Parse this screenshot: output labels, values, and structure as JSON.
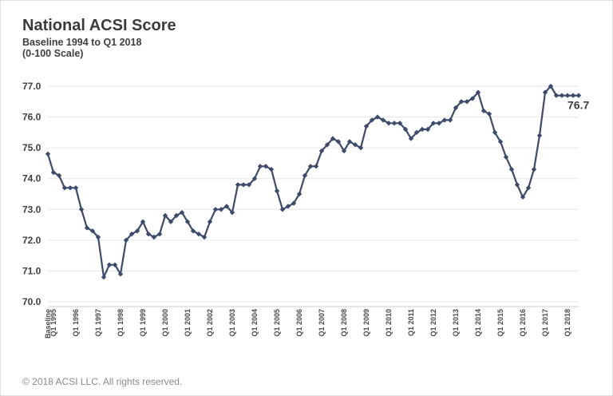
{
  "chart_data": {
    "type": "line",
    "title": "National ACSI Score",
    "subtitle": "Baseline 1994 to Q1 2018",
    "subtitle2": "(0-100 Scale)",
    "xlabel": "",
    "ylabel": "",
    "ylim": [
      70.0,
      77.0
    ],
    "y_ticks": [
      "70.0",
      "71.0",
      "72.0",
      "73.0",
      "74.0",
      "75.0",
      "76.0",
      "77.0"
    ],
    "x_tick_labels": [
      "Baseline",
      "Q1 1995",
      "Q1 1996",
      "Q1 1997",
      "Q1 1998",
      "Q1 1999",
      "Q1 2000",
      "Q1 2001",
      "Q1 2002",
      "Q1 2003",
      "Q1 2004",
      "Q1 2005",
      "Q1 2006",
      "Q1 2007",
      "Q1 2008",
      "Q1 2009",
      "Q1 2010",
      "Q1 2011",
      "Q1 2012",
      "Q1 2013",
      "Q1 2014",
      "Q1 2015",
      "Q1 2016",
      "Q1 2017",
      "Q1 2018"
    ],
    "grid": true,
    "line_color": "#3d4a6b",
    "grid_color": "#e6e6e6",
    "end_label": "76.7",
    "values": [
      74.8,
      74.2,
      74.1,
      73.7,
      73.7,
      73.7,
      73.0,
      72.4,
      72.3,
      72.1,
      70.8,
      71.2,
      71.2,
      70.9,
      72.0,
      72.2,
      72.3,
      72.6,
      72.2,
      72.1,
      72.2,
      72.8,
      72.6,
      72.8,
      72.9,
      72.6,
      72.3,
      72.2,
      72.1,
      72.6,
      73.0,
      73.0,
      73.1,
      72.9,
      73.8,
      73.8,
      73.8,
      74.0,
      74.4,
      74.4,
      74.3,
      73.6,
      73.0,
      73.1,
      73.2,
      73.5,
      74.1,
      74.4,
      74.4,
      74.9,
      75.1,
      75.3,
      75.2,
      74.9,
      75.2,
      75.1,
      75.0,
      75.7,
      75.9,
      76.0,
      75.9,
      75.8,
      75.8,
      75.8,
      75.6,
      75.3,
      75.5,
      75.6,
      75.6,
      75.8,
      75.8,
      75.9,
      75.9,
      76.3,
      76.5,
      76.5,
      76.6,
      76.8,
      76.2,
      76.1,
      75.5,
      75.2,
      74.7,
      74.3,
      73.8,
      73.4,
      73.7,
      74.3,
      75.4,
      76.8,
      77.0,
      76.7,
      76.7,
      76.7,
      76.7,
      76.7
    ]
  },
  "footer": "© 2018 ACSI LLC. All rights reserved."
}
